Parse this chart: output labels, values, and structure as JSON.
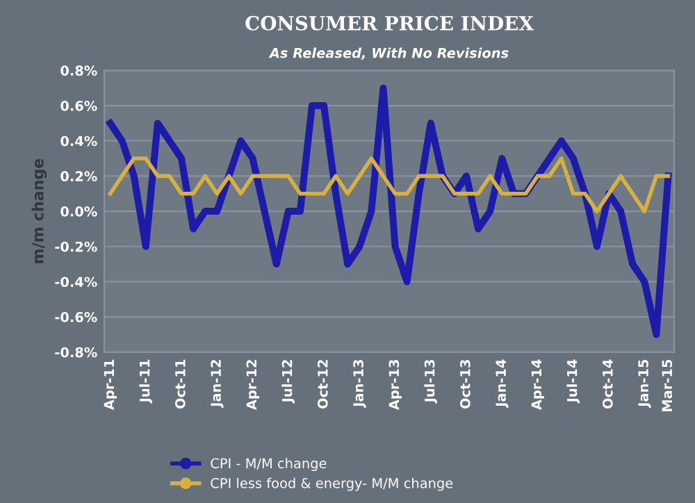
{
  "chart_data": {
    "type": "line",
    "title": "CONSUMER PRICE INDEX",
    "subtitle": "As Released, With No Revisions",
    "ylabel": "m/m change",
    "categories": [
      "Apr-11",
      null,
      null,
      "Jul-11",
      null,
      null,
      "Oct-11",
      null,
      null,
      "Jan-12",
      null,
      null,
      "Apr-12",
      null,
      null,
      "Jul-12",
      null,
      null,
      "Oct-12",
      null,
      null,
      "Jan-13",
      null,
      null,
      "Apr-13",
      null,
      null,
      "Jul-13",
      null,
      null,
      "Oct-13",
      null,
      null,
      "Jan-14",
      null,
      null,
      "Apr-14",
      null,
      null,
      "Jul-14",
      null,
      null,
      "Oct-14",
      null,
      null,
      "Jan-15",
      null,
      "Mar-15"
    ],
    "series": [
      {
        "name": "CPI - M/M change",
        "color": "#1c1ca8",
        "values": [
          0.5,
          0.4,
          0.2,
          -0.2,
          0.5,
          0.4,
          0.3,
          -0.1,
          0.0,
          0.0,
          0.2,
          0.4,
          0.3,
          0.0,
          -0.3,
          0.0,
          0.0,
          0.6,
          0.6,
          0.1,
          -0.3,
          -0.2,
          0.0,
          0.7,
          -0.2,
          -0.4,
          0.1,
          0.5,
          0.2,
          0.1,
          0.2,
          -0.1,
          0.0,
          0.3,
          0.1,
          0.1,
          0.2,
          0.3,
          0.4,
          0.3,
          0.1,
          -0.2,
          0.1,
          0.0,
          -0.3,
          -0.4,
          -0.7,
          0.2
        ]
      },
      {
        "name": "CPI less food & energy- M/M change",
        "color": "#d8b040",
        "values": [
          0.1,
          0.2,
          0.3,
          0.3,
          0.2,
          0.2,
          0.1,
          0.1,
          0.2,
          0.1,
          0.2,
          0.1,
          0.2,
          0.2,
          0.2,
          0.2,
          0.1,
          0.1,
          0.1,
          0.2,
          0.1,
          0.2,
          0.3,
          0.2,
          0.1,
          0.1,
          0.2,
          0.2,
          0.2,
          0.1,
          0.1,
          0.1,
          0.2,
          0.1,
          0.1,
          0.1,
          0.2,
          0.2,
          0.3,
          0.1,
          0.1,
          0.0,
          0.1,
          0.2,
          0.1,
          0.0,
          0.2,
          0.2
        ]
      }
    ],
    "ylim": [
      -0.8,
      0.8
    ],
    "yticks": [
      {
        "value": -0.8,
        "label": "-0.8%"
      },
      {
        "value": -0.6,
        "label": "-0.6%"
      },
      {
        "value": -0.4,
        "label": "-0.4%"
      },
      {
        "value": -0.2,
        "label": "-0.2%"
      },
      {
        "value": 0,
        "label": "0.0%"
      },
      {
        "value": 0.2,
        "label": "0.2%"
      },
      {
        "value": 0.4,
        "label": "0.4%"
      },
      {
        "value": 0.6,
        "label": "0.6%"
      },
      {
        "value": 0.8,
        "label": "0.8%"
      }
    ],
    "grid": "y",
    "legend": "bottom",
    "line_style": "solid"
  }
}
